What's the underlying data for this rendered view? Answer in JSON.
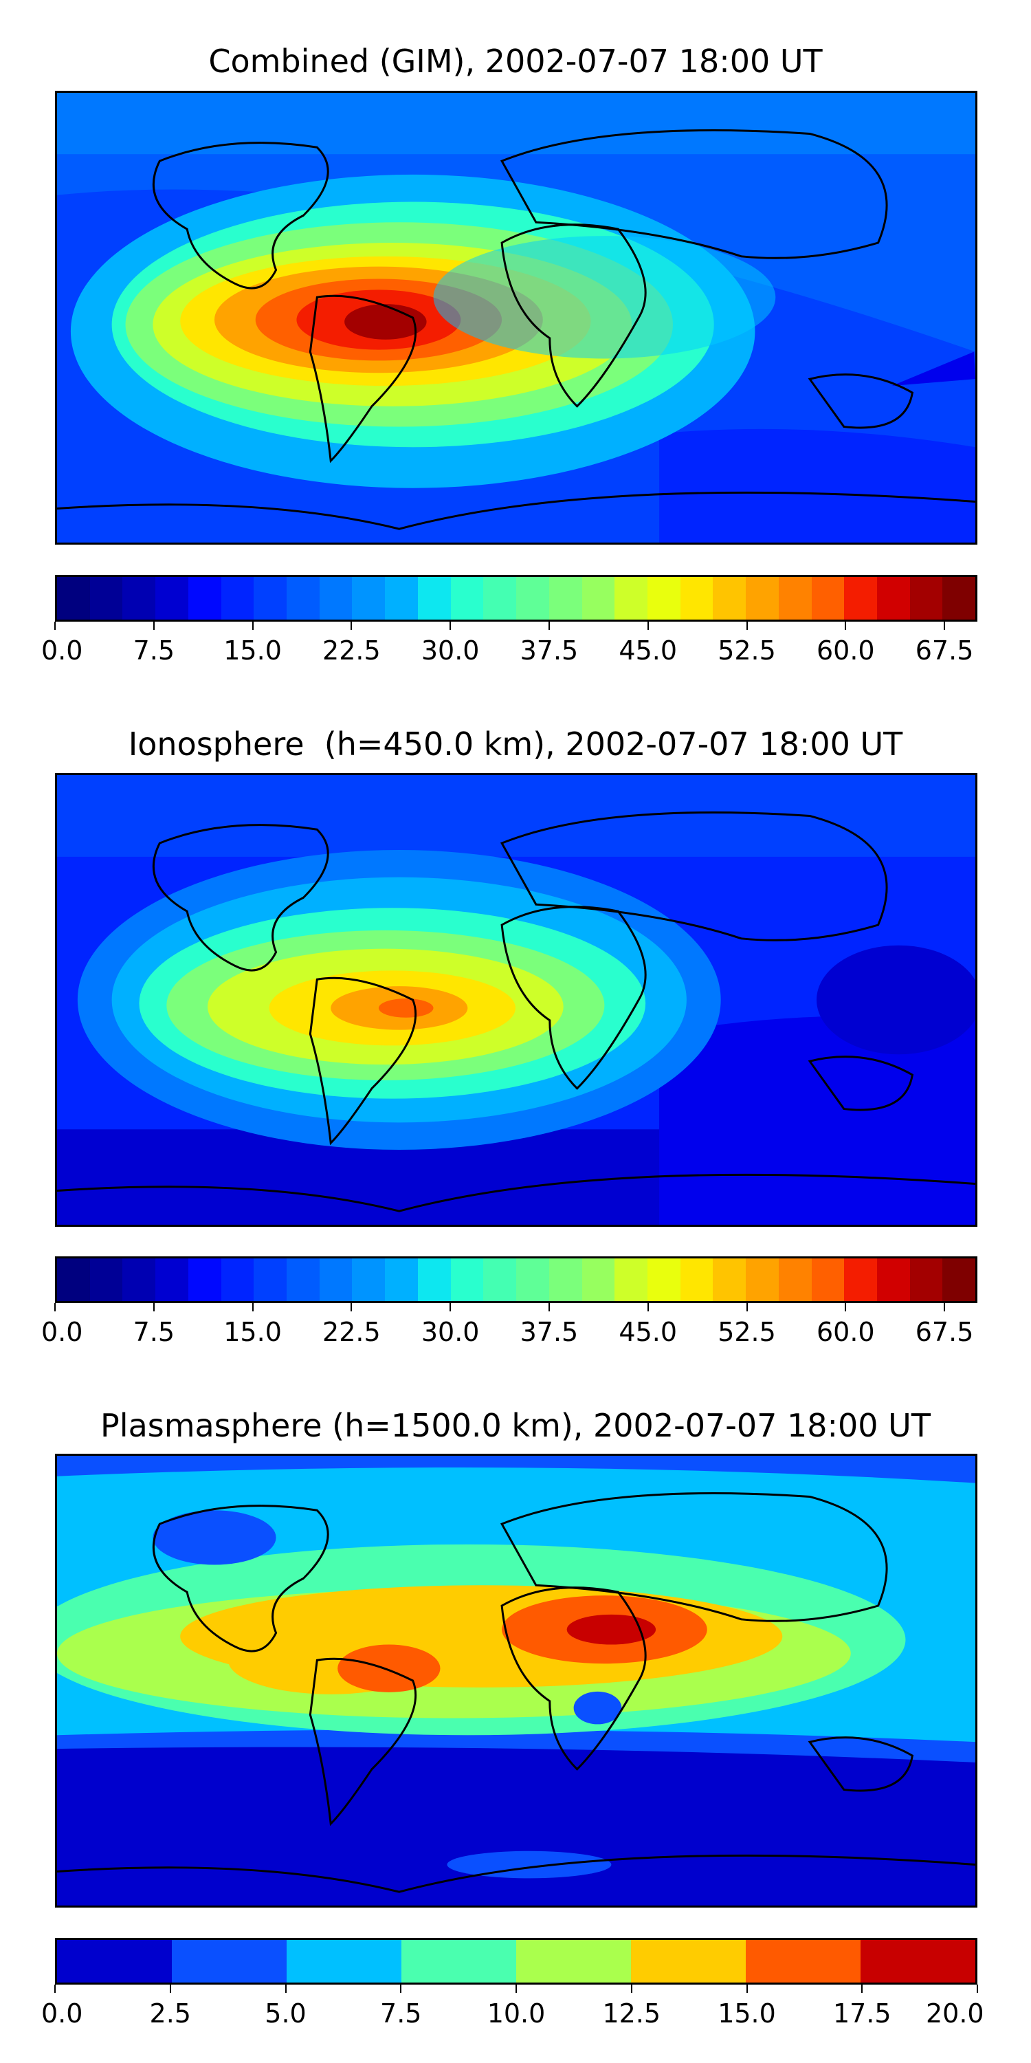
{
  "panels": [
    {
      "title": "Combined (GIM), 2002-07-07 18:00 UT",
      "colorbar_ticks": [
        "0.0",
        "7.5",
        "15.0",
        "22.5",
        "30.0",
        "37.5",
        "45.0",
        "52.5",
        "60.0",
        "67.5"
      ],
      "colorbar_range": [
        0,
        70
      ],
      "colorbar_levels": 28,
      "colors": [
        "#00007f",
        "#000096",
        "#0000b2",
        "#0000d1",
        "#0000ed",
        "#0008ff",
        "#0024ff",
        "#0040ff",
        "#005cff",
        "#0078ff",
        "#0094ff",
        "#00b0ff",
        "#00ccff",
        "#0de7f0",
        "#29ffce",
        "#44ffb2",
        "#5fff97",
        "#7bff7b",
        "#97ff5f",
        "#b2ff44",
        "#ceff29",
        "#e9ff0d",
        "#ffe600",
        "#ffc400",
        "#ffa300",
        "#ff8200",
        "#ff6000",
        "#ff3f00",
        "#f41d00",
        "#d10000",
        "#a30000",
        "#7f0000"
      ]
    },
    {
      "title": "Ionosphere  (h=450.0 km), 2002-07-07 18:00 UT",
      "colorbar_ticks": [
        "0.0",
        "7.5",
        "15.0",
        "22.5",
        "30.0",
        "37.5",
        "45.0",
        "52.5",
        "60.0",
        "67.5"
      ],
      "colorbar_range": [
        0,
        70
      ],
      "colorbar_levels": 28
    },
    {
      "title": "Plasmasphere (h=1500.0 km), 2002-07-07 18:00 UT",
      "colorbar_ticks": [
        "0.0",
        "2.5",
        "5.0",
        "7.5",
        "10.0",
        "12.5",
        "15.0",
        "17.5",
        "20.0"
      ],
      "colorbar_range": [
        0,
        20
      ],
      "colorbar_levels": 8,
      "colors": [
        "#0000cd",
        "#0a50ff",
        "#00c0ff",
        "#4affaf",
        "#aaff4d",
        "#ffcc00",
        "#ff5a00",
        "#c80000"
      ]
    }
  ]
}
